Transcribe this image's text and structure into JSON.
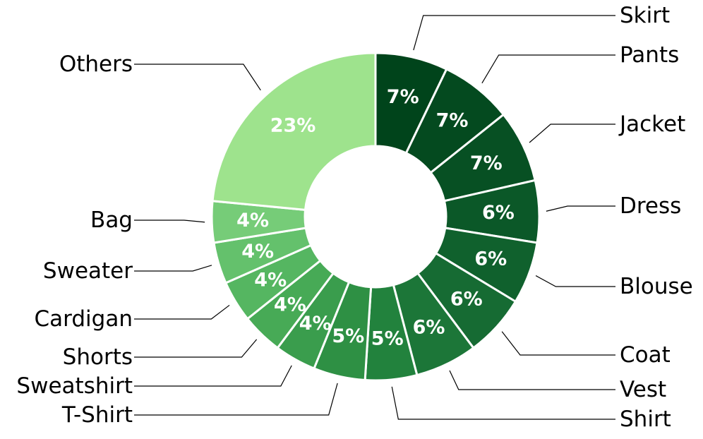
{
  "chart_data": {
    "type": "pie",
    "donut": true,
    "title": "",
    "start": "top",
    "direction": "clockwise",
    "slices": [
      {
        "label": "Skirt",
        "value": 7,
        "pct_text": "7%",
        "color": "#00441b"
      },
      {
        "label": "Pants",
        "value": 7,
        "pct_text": "7%",
        "color": "#044a1f"
      },
      {
        "label": "Jacket",
        "value": 7,
        "pct_text": "7%",
        "color": "#075023"
      },
      {
        "label": "Dress",
        "value": 6,
        "pct_text": "6%",
        "color": "#0b5828"
      },
      {
        "label": "Blouse",
        "value": 6,
        "pct_text": "6%",
        "color": "#10612d"
      },
      {
        "label": "Coat",
        "value": 6,
        "pct_text": "6%",
        "color": "#166b33"
      },
      {
        "label": "Vest",
        "value": 6,
        "pct_text": "6%",
        "color": "#1c7638"
      },
      {
        "label": "Shirt",
        "value": 5,
        "pct_text": "5%",
        "color": "#22823d"
      },
      {
        "label": "T-Shirt",
        "value": 5,
        "pct_text": "5%",
        "color": "#2e9044"
      },
      {
        "label": "Sweatshirt",
        "value": 4,
        "pct_text": "4%",
        "color": "#3a9d4d"
      },
      {
        "label": "Shorts",
        "value": 4,
        "pct_text": "4%",
        "color": "#47aa56"
      },
      {
        "label": "Cardigan",
        "value": 4,
        "pct_text": "4%",
        "color": "#55b661"
      },
      {
        "label": "Sweater",
        "value": 4,
        "pct_text": "4%",
        "color": "#64c16c"
      },
      {
        "label": "Bag",
        "value": 4,
        "pct_text": "4%",
        "color": "#76cc78"
      },
      {
        "label": "Others",
        "value": 23,
        "pct_text": "23%",
        "color": "#9ee38d"
      }
    ]
  }
}
